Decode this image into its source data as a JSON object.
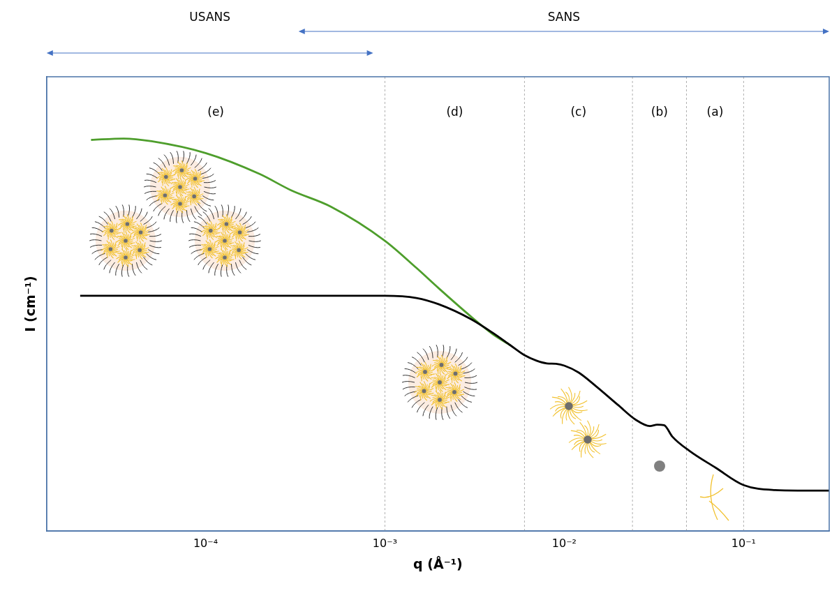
{
  "chart_data": {
    "type": "line",
    "x_label": "q (Å⁻¹)",
    "y_label": "I (cm⁻¹)",
    "log": "x",
    "grid": false,
    "tick_labels": "x",
    "xlim": [
      1.3e-05,
      0.3
    ],
    "xticks": [
      {
        "value": 0.0001,
        "label": "10⁻⁴"
      },
      {
        "value": 0.001,
        "label": "10⁻³"
      },
      {
        "value": 0.01,
        "label": "10⁻²"
      },
      {
        "value": 0.1,
        "label": "10⁻¹"
      }
    ],
    "ylim": [
      0,
      100
    ],
    "yticks": [],
    "series": [
      {
        "color": "#000000",
        "x": [
          2e-05,
          0.0001,
          0.001,
          0.0015,
          0.002,
          0.003,
          0.004,
          0.005,
          0.006,
          0.007,
          0.008,
          0.009,
          0.01,
          0.012,
          0.015,
          0.02,
          0.025,
          0.03,
          0.033,
          0.036,
          0.04,
          0.05,
          0.07,
          0.1,
          0.15,
          0.2,
          0.3
        ],
        "values": [
          51.8,
          51.8,
          51.8,
          51.3,
          49.9,
          46.7,
          43.6,
          40.9,
          38.7,
          37.5,
          36.9,
          36.8,
          36.4,
          34.9,
          31.9,
          27.7,
          24.5,
          23.1,
          23.4,
          23.3,
          20.8,
          17.6,
          13.9,
          10.1,
          9.0,
          8.9,
          8.9
        ]
      },
      {
        "color": "#4e9e2c",
        "x": [
          2.3e-05,
          3.5e-05,
          5e-05,
          0.0001,
          0.0002,
          0.0003,
          0.0005,
          0.001,
          0.0015,
          0.002,
          0.003,
          0.004,
          0.005
        ],
        "values": [
          86.1,
          86.4,
          85.8,
          83.2,
          78.6,
          75.0,
          71.4,
          63.9,
          57.9,
          53.4,
          47.3,
          43.3,
          40.9
        ]
      }
    ],
    "annotations": {
      "ranges": [
        {
          "label": "USANS",
          "from": 1.3e-05,
          "to": 0.00086
        },
        {
          "label": "SANS",
          "from": 0.00033,
          "to": 0.3
        }
      ],
      "regions": [
        {
          "label": "(e)",
          "from": 1.3e-05,
          "to": 0.001
        },
        {
          "label": "(d)",
          "from": 0.001,
          "to": 0.006
        },
        {
          "label": "(c)",
          "from": 0.006,
          "to": 0.024
        },
        {
          "label": "(b)",
          "from": 0.024,
          "to": 0.048
        },
        {
          "label": "(a)",
          "from": 0.048,
          "to": 0.1
        }
      ]
    }
  }
}
